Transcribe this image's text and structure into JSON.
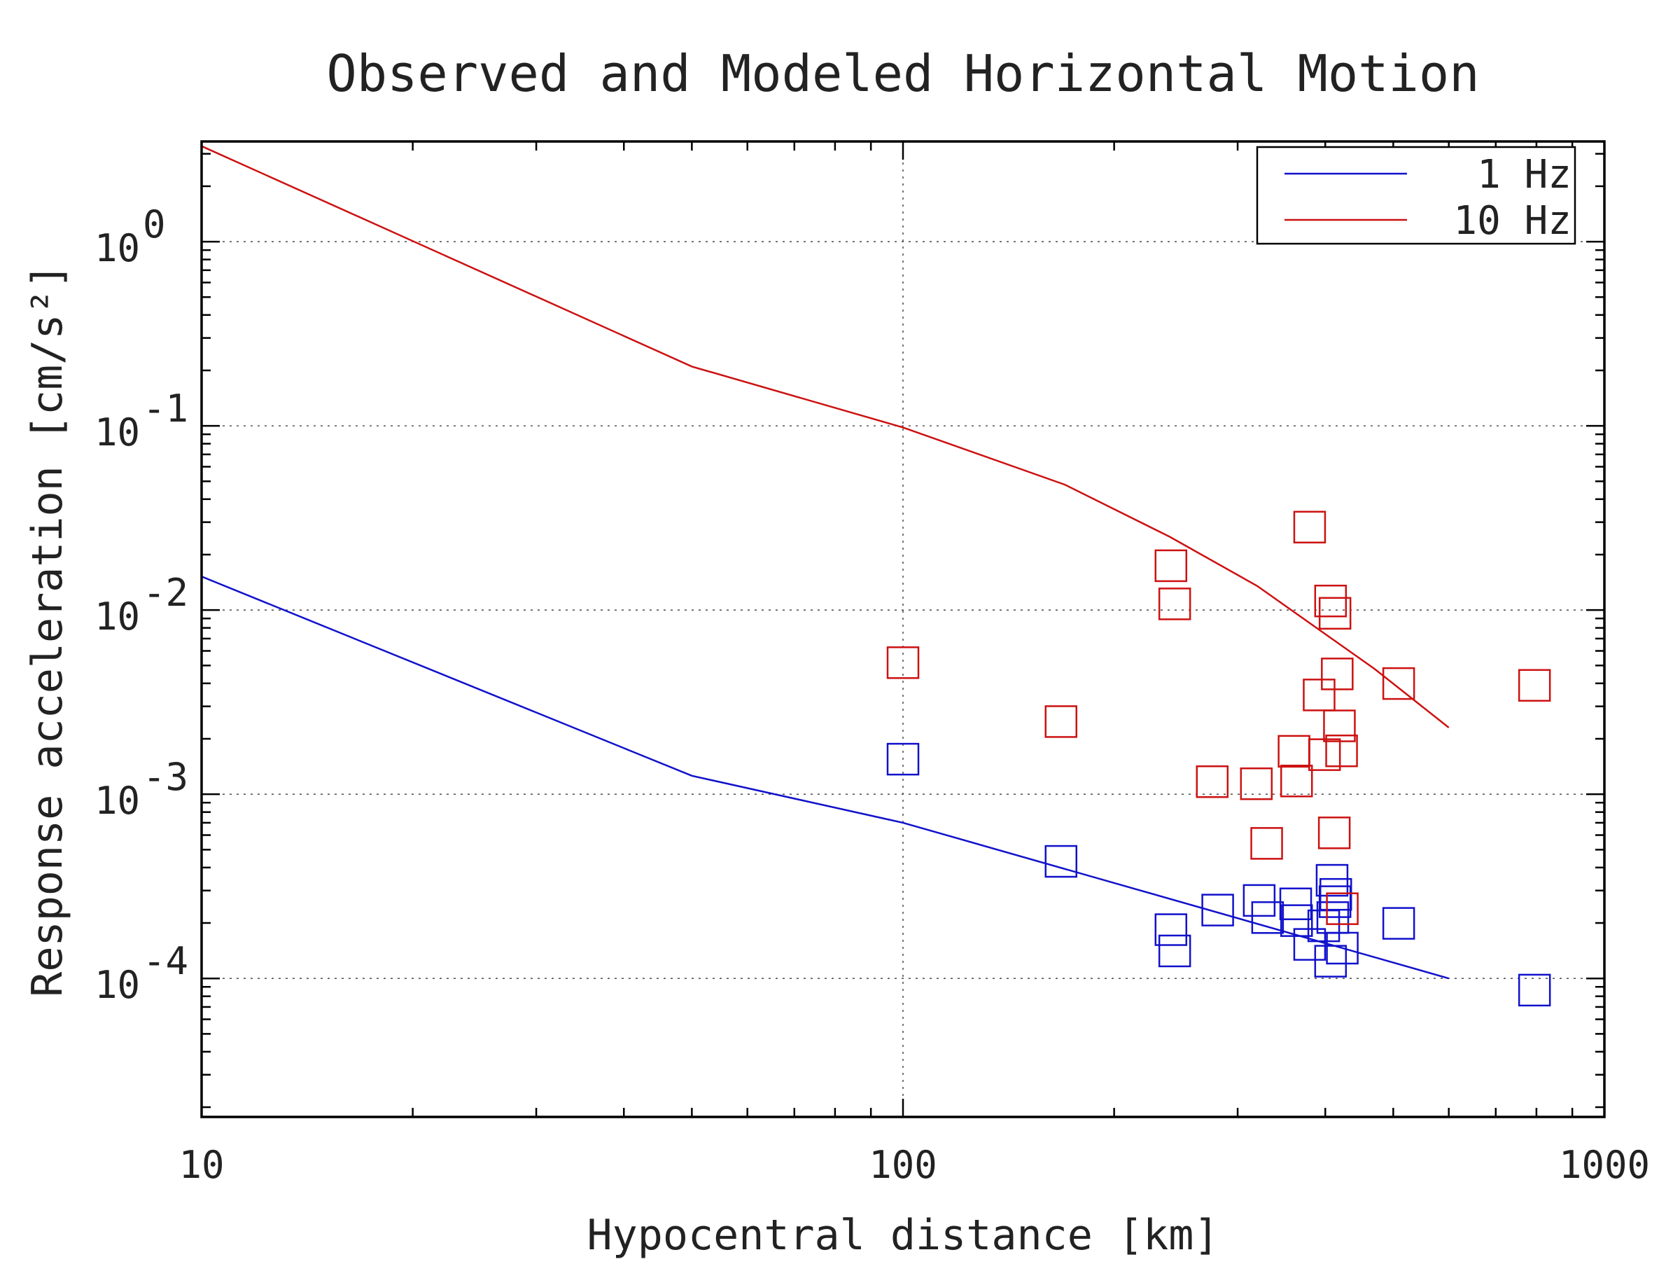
{
  "chart_data": {
    "type": "scatter",
    "title": "Observed and Modeled Horizontal Motion",
    "xlabel": "Hypocentral distance [km]",
    "ylabel": "Response acceleration [cm/s²]",
    "x_scale": "log",
    "y_scale": "log",
    "xlim": [
      10,
      1000
    ],
    "ylim": [
      1.77e-05,
      3.5
    ],
    "x_ticks": [
      {
        "value": 10,
        "label": "10"
      },
      {
        "value": 100,
        "label": "100"
      },
      {
        "value": 1000,
        "label": "1000"
      }
    ],
    "y_ticks": [
      {
        "value": 1,
        "mantissa": "10",
        "exp": "0"
      },
      {
        "value": 0.1,
        "mantissa": "10",
        "exp": "-1"
      },
      {
        "value": 0.01,
        "mantissa": "10",
        "exp": "-2"
      },
      {
        "value": 0.001,
        "mantissa": "10",
        "exp": "-3"
      },
      {
        "value": 0.0001,
        "mantissa": "10",
        "exp": "-4"
      }
    ],
    "grid": true,
    "legend_position": "top-right",
    "series": [
      {
        "name": "1 Hz",
        "color": "#1111cc",
        "model_line": {
          "x": [
            10,
            50,
            100,
            600
          ],
          "y": [
            0.0152,
            0.00126,
            0.0007,
            0.0001
          ]
        },
        "observed": {
          "x": [
            100,
            168,
            241,
            244,
            281,
            322,
            331,
            363,
            364,
            380,
            398,
            407,
            409,
            410,
            413,
            414,
            423,
            509,
            795
          ],
          "y": [
            0.00155,
            0.000432,
            0.000184,
            0.000141,
            0.000235,
            0.000265,
            0.000214,
            0.000254,
            0.000206,
            0.000153,
            0.000193,
            0.000124,
            0.000341,
            0.000214,
            0.000261,
            0.000286,
            0.000146,
            0.000199,
            8.64e-05
          ]
        }
      },
      {
        "name": "10 Hz",
        "color": "#cc1111",
        "model_line": {
          "x": [
            10,
            50,
            100,
            170,
            240,
            320,
            400,
            470,
            600
          ],
          "y": [
            3.3,
            0.21,
            0.098,
            0.048,
            0.025,
            0.0135,
            0.0074,
            0.0048,
            0.0023
          ]
        },
        "observed": {
          "x": [
            100,
            168,
            241,
            244,
            276,
            319,
            330,
            361,
            364,
            380,
            392,
            399,
            407,
            412,
            413,
            416,
            419,
            422,
            423,
            509,
            795
          ],
          "y": [
            0.00518,
            0.00248,
            0.0174,
            0.0108,
            0.00117,
            0.00114,
            0.000541,
            0.00171,
            0.00118,
            0.0282,
            0.00346,
            0.00164,
            0.0112,
            0.000617,
            0.0096,
            0.0045,
            0.00235,
            0.00172,
            0.000239,
            0.00399,
            0.0039
          ]
        }
      }
    ]
  }
}
